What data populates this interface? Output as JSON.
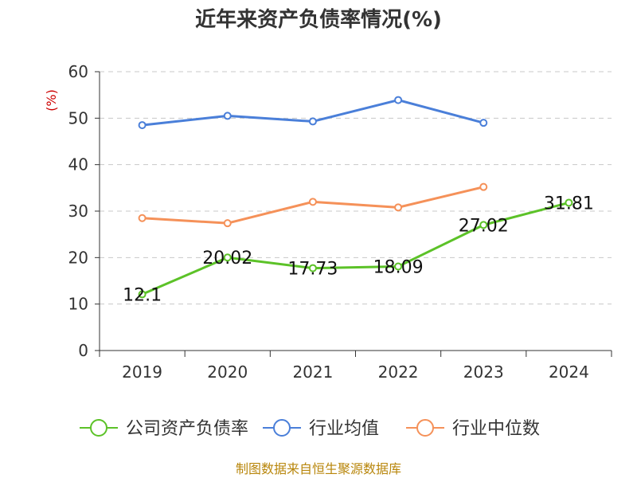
{
  "chart_data": {
    "type": "line",
    "title": "近年来资产负债率情况(%)",
    "ylabel": "(%)",
    "xlabel": "",
    "categories": [
      "2019",
      "2020",
      "2021",
      "2022",
      "2023",
      "2024"
    ],
    "ylim": [
      0,
      60
    ],
    "yticks": [
      "0",
      "10",
      "20",
      "30",
      "40",
      "50",
      "60"
    ],
    "grid": true,
    "legend_position": "bottom",
    "series": [
      {
        "name": "公司资产负债率",
        "color": "#5cc228",
        "values": [
          12.1,
          20.02,
          17.73,
          18.09,
          27.02,
          31.81
        ],
        "labels": [
          "12.1",
          "20.02",
          "17.73",
          "18.09",
          "27.02",
          "31.81"
        ]
      },
      {
        "name": "行业均值",
        "color": "#4a7fd9",
        "values": [
          48.5,
          50.5,
          49.3,
          53.9,
          49.0,
          null
        ]
      },
      {
        "name": "行业中位数",
        "color": "#f59159",
        "values": [
          28.5,
          27.4,
          32.0,
          30.8,
          35.2,
          null
        ]
      }
    ],
    "source": "制图数据来自恒生聚源数据库"
  }
}
